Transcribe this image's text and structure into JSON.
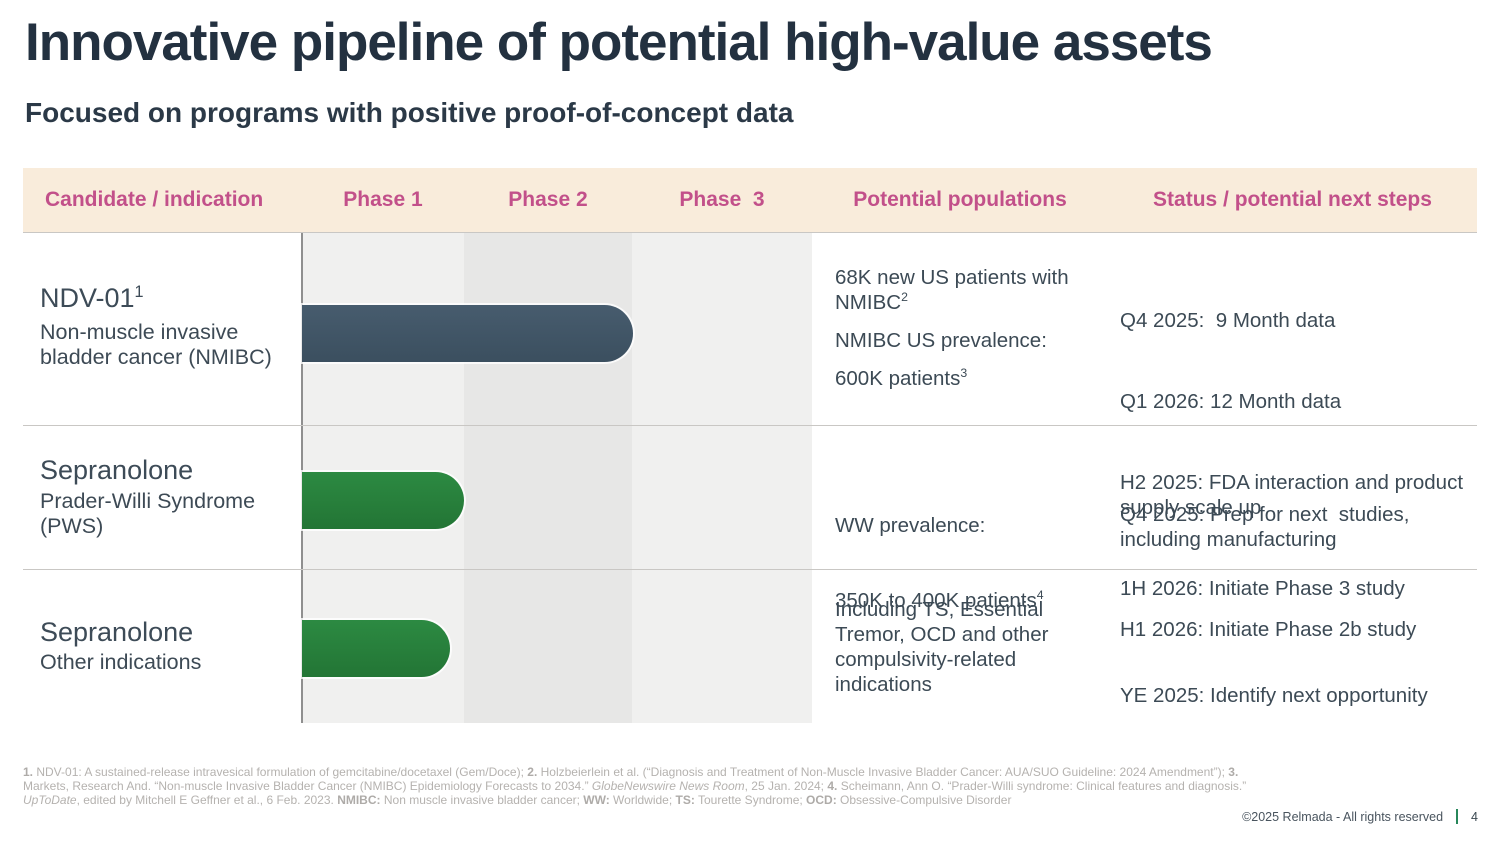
{
  "slide": {
    "title": "Innovative pipeline of potential high-value assets",
    "subtitle": "Focused on programs with positive proof-of-concept data",
    "copyright": "©2025 Relmada - All rights reserved",
    "page_number": "4"
  },
  "colors": {
    "header_bg": "#f9ecdb",
    "header_text": "#c2508a",
    "bar_slate": "#42566a",
    "bar_green": "#27813d",
    "band_light": "#f0f0ef",
    "band_dark": "#e7e7e6",
    "title_text": "#233140",
    "body_text": "#3c4a55",
    "footnote_text": "#b5b2af",
    "page_separator_green": "#27875a"
  },
  "table": {
    "headers": [
      "Candidate / indication",
      "Phase 1",
      "Phase 2",
      "Phase  3",
      "Potential populations",
      "Status / potential next steps"
    ]
  },
  "rows": [
    {
      "candidate": {
        "name": "NDV-01",
        "name_sup": "1",
        "subtitle": "Non-muscle invasive bladder cancer (NMIBC)"
      },
      "bar": {
        "color": "slate",
        "extent": "through end of Phase 2"
      },
      "populations": [
        {
          "text": "68K new US patients with NMIBC",
          "sup": "2"
        },
        {
          "text": "NMIBC US prevalence:",
          "sup": ""
        },
        {
          "text": "600K patients",
          "sup": "3"
        }
      ],
      "status": [
        "Q4 2025:  9 Month data",
        "Q1 2026: 12 Month data",
        "H2 2025: FDA interaction and product supply scale up",
        "1H 2026: Initiate Phase 3 study"
      ]
    },
    {
      "candidate": {
        "name": "Sepranolone",
        "name_sup": "",
        "subtitle": "Prader-Willi Syndrome (PWS)"
      },
      "bar": {
        "color": "green",
        "extent": "through end of Phase 1"
      },
      "populations": [
        {
          "text": "WW prevalence:",
          "sup": ""
        },
        {
          "text": "350K to 400K patients",
          "sup": "4"
        }
      ],
      "status": [
        "Q4 2025: Prep for next  studies, including manufacturing",
        "H1 2026: Initiate Phase 2b study"
      ]
    },
    {
      "candidate": {
        "name": "Sepranolone",
        "name_sup": "",
        "subtitle": "Other indications"
      },
      "bar": {
        "color": "green",
        "extent": "most of Phase 1"
      },
      "populations": [
        {
          "text": "Including TS, Essential Tremor, OCD and other compulsivity-related indications",
          "sup": ""
        }
      ],
      "status": [
        "YE 2025: Identify next opportunity"
      ]
    }
  ],
  "footnotes": {
    "segments": [
      {
        "t": "1.",
        "b": 1
      },
      {
        "t": " NDV-01: A sustained-release intravesical formulation of gemcitabine/docetaxel (Gem/Doce); "
      },
      {
        "t": "2.",
        "b": 1
      },
      {
        "t": " Holzbeierlein et al. (“Diagnosis and Treatment of Non-Muscle Invasive Bladder Cancer: AUA/SUO Guideline: 2024 Amendment”); "
      },
      {
        "t": "3.",
        "b": 1
      },
      {
        "t": " Markets, Research And. “Non-muscle Invasive Bladder Cancer (NMIBC) Epidemiology Forecasts to 2034.” "
      },
      {
        "t": "GlobeNewswire News Room",
        "i": 1
      },
      {
        "t": ", 25 Jan. 2024; "
      },
      {
        "t": "4.",
        "b": 1
      },
      {
        "t": " Scheimann, Ann O. “Prader-Willi syndrome: Clinical features and diagnosis.” "
      },
      {
        "t": "UpToDate",
        "i": 1
      },
      {
        "t": ", edited by Mitchell E Geffner et al., 6 Feb. 2023. "
      },
      {
        "t": "NMIBC:",
        "b": 1
      },
      {
        "t": " Non muscle invasive bladder cancer; "
      },
      {
        "t": "WW:",
        "b": 1
      },
      {
        "t": " Worldwide; "
      },
      {
        "t": "TS:",
        "b": 1
      },
      {
        "t": " Tourette Syndrome; "
      },
      {
        "t": "OCD:",
        "b": 1
      },
      {
        "t": " Obsessive-Compulsive Disorder"
      }
    ]
  }
}
